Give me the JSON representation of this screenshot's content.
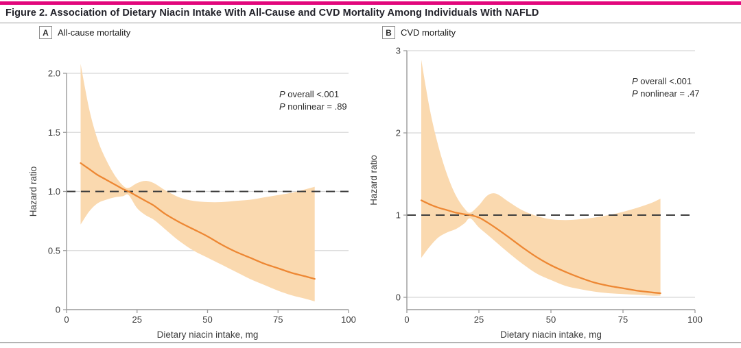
{
  "figure": {
    "title": "Figure 2. Association of Dietary Niacin Intake With All-Cause and CVD Mortality Among Individuals With NAFLD",
    "accent_color": "#e2077c"
  },
  "colors": {
    "line": "#ed8733",
    "band": "#fad9af",
    "axis": "#9a9a9a",
    "grid": "#d8d8d8",
    "ref": "#3d3d3d"
  },
  "chart_data": [
    {
      "type": "line",
      "panel_letter": "A",
      "panel_title": "All-cause mortality",
      "xlabel": "Dietary niacin intake, mg",
      "ylabel": "Hazard ratio",
      "xlim": [
        0,
        100
      ],
      "ylim": [
        0,
        2.11
      ],
      "x_ticks": [
        0,
        25,
        50,
        75,
        100
      ],
      "y_ticks": [
        {
          "v": 0,
          "label": "0"
        },
        {
          "v": 0.5,
          "label": "0.5"
        },
        {
          "v": 1,
          "label": "1.0"
        },
        {
          "v": 1.5,
          "label": "1.5"
        },
        {
          "v": 2,
          "label": "2.0"
        }
      ],
      "gridlines": [
        0.5,
        1.0,
        1.5,
        2.0
      ],
      "reference_line": 1.0,
      "annotations": [
        [
          "P",
          " overall <.001"
        ],
        [
          "P",
          " nonlinear = .89"
        ]
      ],
      "x": [
        5,
        8,
        11,
        14,
        17,
        20,
        22,
        25,
        28,
        31,
        35,
        40,
        45,
        50,
        55,
        60,
        65,
        70,
        75,
        80,
        85,
        88
      ],
      "hr": [
        1.24,
        1.19,
        1.14,
        1.1,
        1.06,
        1.02,
        1.0,
        0.96,
        0.92,
        0.88,
        0.81,
        0.74,
        0.68,
        0.62,
        0.55,
        0.49,
        0.44,
        0.39,
        0.35,
        0.31,
        0.28,
        0.26
      ],
      "ci_lower": [
        0.72,
        0.83,
        0.9,
        0.93,
        0.95,
        0.96,
        0.97,
        0.86,
        0.8,
        0.76,
        0.68,
        0.58,
        0.5,
        0.44,
        0.38,
        0.32,
        0.26,
        0.21,
        0.16,
        0.12,
        0.09,
        0.07
      ],
      "ci_upper": [
        2.08,
        1.7,
        1.44,
        1.27,
        1.14,
        1.05,
        1.03,
        1.07,
        1.09,
        1.07,
        1.01,
        0.95,
        0.92,
        0.91,
        0.91,
        0.92,
        0.93,
        0.95,
        0.97,
        0.99,
        1.02,
        1.04
      ]
    },
    {
      "type": "line",
      "panel_letter": "B",
      "panel_title": "CVD mortality",
      "xlabel": "Dietary niacin intake, mg",
      "ylabel": "Hazard ratio",
      "xlim": [
        0,
        100
      ],
      "ylim": [
        0,
        3
      ],
      "x_ticks": [
        0,
        25,
        50,
        75,
        100
      ],
      "y_ticks": [
        {
          "v": 0,
          "label": "0"
        },
        {
          "v": 1,
          "label": "1"
        },
        {
          "v": 2,
          "label": "2"
        },
        {
          "v": 3,
          "label": "3"
        }
      ],
      "gridlines": [
        0,
        2,
        3
      ],
      "reference_line": 1.0,
      "annotations": [
        [
          "P",
          " overall <.001"
        ],
        [
          "P",
          " nonlinear = .47"
        ]
      ],
      "x": [
        5,
        8,
        11,
        14,
        17,
        20,
        22,
        25,
        28,
        31,
        35,
        40,
        45,
        50,
        55,
        60,
        65,
        70,
        75,
        80,
        85,
        88
      ],
      "hr": [
        1.18,
        1.13,
        1.09,
        1.06,
        1.03,
        1.01,
        1.0,
        0.97,
        0.91,
        0.84,
        0.74,
        0.61,
        0.49,
        0.39,
        0.31,
        0.24,
        0.18,
        0.14,
        0.11,
        0.08,
        0.06,
        0.05
      ],
      "ci_lower": [
        0.48,
        0.62,
        0.73,
        0.79,
        0.83,
        0.9,
        0.96,
        0.85,
        0.76,
        0.67,
        0.55,
        0.41,
        0.29,
        0.21,
        0.14,
        0.1,
        0.07,
        0.05,
        0.04,
        0.03,
        0.02,
        0.02
      ],
      "ci_upper": [
        2.89,
        2.28,
        1.83,
        1.49,
        1.24,
        1.08,
        1.03,
        1.12,
        1.24,
        1.26,
        1.17,
        1.06,
        0.99,
        0.95,
        0.94,
        0.95,
        0.97,
        1.0,
        1.04,
        1.09,
        1.15,
        1.2
      ]
    }
  ]
}
